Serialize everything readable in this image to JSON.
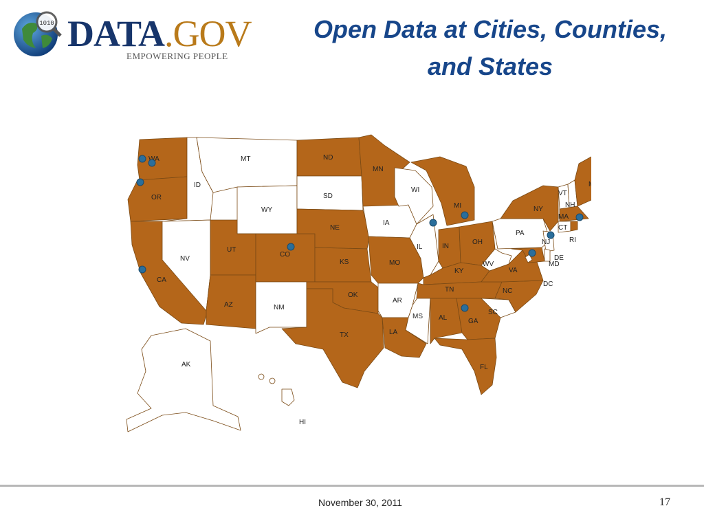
{
  "logo": {
    "word_data": "DATA",
    "word_gov": ".GOV",
    "tagline": "EMPOWERING PEOPLE",
    "globe_digits": "1010"
  },
  "title": {
    "line1": "Open Data at Cities, Counties,",
    "line2": "and States"
  },
  "colors": {
    "open_state": "#b4661a",
    "other_state": "#ffffff",
    "city_marker": "#2a6e9b",
    "title": "#17468a"
  },
  "map": {
    "legend_meaning": "",
    "states": {
      "WA": {
        "label": "WA",
        "open": true
      },
      "OR": {
        "label": "OR",
        "open": true
      },
      "CA": {
        "label": "CA",
        "open": true
      },
      "ID": {
        "label": "ID",
        "open": false
      },
      "NV": {
        "label": "NV",
        "open": false
      },
      "MT": {
        "label": "MT",
        "open": false
      },
      "WY": {
        "label": "WY",
        "open": false
      },
      "UT": {
        "label": "UT",
        "open": true
      },
      "AZ": {
        "label": "AZ",
        "open": true
      },
      "CO": {
        "label": "CO",
        "open": true
      },
      "NM": {
        "label": "NM",
        "open": false
      },
      "ND": {
        "label": "ND",
        "open": true
      },
      "SD": {
        "label": "SD",
        "open": false
      },
      "NE": {
        "label": "NE",
        "open": true
      },
      "KS": {
        "label": "KS",
        "open": true
      },
      "OK": {
        "label": "OK",
        "open": true
      },
      "TX": {
        "label": "TX",
        "open": true
      },
      "MN": {
        "label": "MN",
        "open": true
      },
      "IA": {
        "label": "IA",
        "open": false
      },
      "MO": {
        "label": "MO",
        "open": true
      },
      "AR": {
        "label": "AR",
        "open": false
      },
      "LA": {
        "label": "LA",
        "open": true
      },
      "WI": {
        "label": "WI",
        "open": false
      },
      "IL": {
        "label": "IL",
        "open": false
      },
      "MS": {
        "label": "MS",
        "open": false
      },
      "MI": {
        "label": "MI",
        "open": true
      },
      "IN": {
        "label": "IN",
        "open": true
      },
      "OH": {
        "label": "OH",
        "open": true
      },
      "KY": {
        "label": "KY",
        "open": true
      },
      "TN": {
        "label": "TN",
        "open": true
      },
      "AL": {
        "label": "AL",
        "open": true
      },
      "GA": {
        "label": "GA",
        "open": true
      },
      "FL": {
        "label": "FL",
        "open": true
      },
      "SC": {
        "label": "SC",
        "open": false
      },
      "NC": {
        "label": "NC",
        "open": true
      },
      "VA": {
        "label": "VA",
        "open": true
      },
      "WV": {
        "label": "WV",
        "open": false
      },
      "PA": {
        "label": "PA",
        "open": false
      },
      "NY": {
        "label": "NY",
        "open": true
      },
      "VT": {
        "label": "VT",
        "open": false
      },
      "NH": {
        "label": "NH",
        "open": false
      },
      "ME": {
        "label": "ME",
        "open": true
      },
      "MA": {
        "label": "MA",
        "open": true
      },
      "RI": {
        "label": "RI",
        "open": true
      },
      "CT": {
        "label": "CT",
        "open": false
      },
      "NJ": {
        "label": "NJ",
        "open": false
      },
      "DE": {
        "label": "DE",
        "open": false
      },
      "MD": {
        "label": "MD",
        "open": true
      },
      "DC": {
        "label": "DC",
        "open": false
      },
      "AK": {
        "label": "AK",
        "open": false
      },
      "HI": {
        "label": "HI",
        "open": false
      }
    },
    "city_markers": [
      "Seattle, WA",
      "Tacoma, WA",
      "Portland, OR",
      "San Francisco, CA",
      "Denver, CO",
      "Chicago, IL",
      "Detroit, MI",
      "Atlanta, GA",
      "Washington, DC",
      "New York, NY",
      "Boston, MA"
    ]
  },
  "footer": {
    "date": "November 30, 2011",
    "page": "17"
  }
}
